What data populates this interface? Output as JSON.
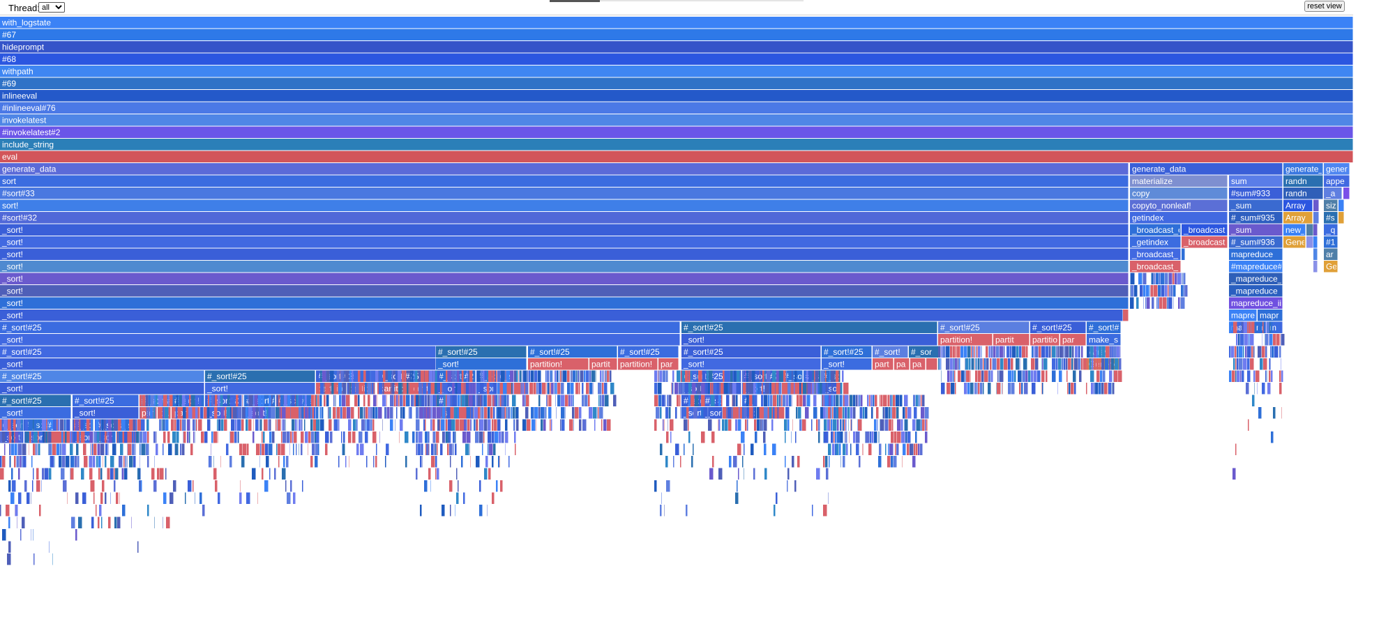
{
  "toolbar": {
    "thread_label": "Thread:",
    "thread_options": [
      "all"
    ],
    "thread_selected": "all",
    "reset_label": "reset view"
  },
  "colors": {
    "palette": [
      "#4169e1",
      "#3a5fd8",
      "#5b6fd6",
      "#6f7cf0",
      "#3b82f6",
      "#2e6fd8",
      "#1f5bbf",
      "#4f5fb8",
      "#2f88c8",
      "#2a6fb0",
      "#6a5acd",
      "#5f7fe0"
    ],
    "highlight_red": "#d9616a",
    "orange": "#e0a038",
    "lavender": "#8a91e8",
    "steel": "#4f7fa8",
    "purple": "#7b4fe8",
    "eval_red": "#d2555a"
  },
  "flame": {
    "frames": [
      [
        0,
        0,
        1940,
        "with_logstate",
        "#3b82f6"
      ],
      [
        1,
        0,
        1940,
        "#67",
        "#2e79e8"
      ],
      [
        2,
        0,
        1940,
        "hideprompt",
        "#3554c9"
      ],
      [
        3,
        0,
        1940,
        "#68",
        "#2b56e0"
      ],
      [
        4,
        0,
        1940,
        "withpath",
        "#3f86f2"
      ],
      [
        5,
        0,
        1940,
        "#69",
        "#2f72c7"
      ],
      [
        6,
        0,
        1940,
        "inlineeval",
        "#2459c9"
      ],
      [
        7,
        0,
        1940,
        "#inlineeval#76",
        "#4b79e6"
      ],
      [
        8,
        0,
        1940,
        "invokelatest",
        "#4f86e6"
      ],
      [
        9,
        0,
        1940,
        "#invokelatest#2",
        "#6a55e8"
      ],
      [
        10,
        0,
        1940,
        "include_string",
        "#2b7fb8"
      ],
      [
        11,
        0,
        1940,
        "eval",
        "#d2555a"
      ],
      [
        12,
        0,
        1618,
        "generate_data",
        "#5b6ad8"
      ],
      [
        12,
        1620,
        219,
        "generate_data",
        "#3a5fd8"
      ],
      [
        12,
        1840,
        57,
        "generate_",
        "#3b78e0"
      ],
      [
        12,
        1898,
        37,
        "gener",
        "#4f86f0"
      ],
      [
        13,
        0,
        1618,
        "sort",
        "#3b6ce0"
      ],
      [
        13,
        1620,
        140,
        "materialize",
        "#7e8fd0"
      ],
      [
        13,
        1762,
        77,
        "sum",
        "#5a7de8"
      ],
      [
        13,
        1840,
        57,
        "randn",
        "#2a6fb0"
      ],
      [
        13,
        1898,
        37,
        "appe",
        "#4169e1"
      ],
      [
        14,
        0,
        1618,
        "#sort#33",
        "#4a78e0"
      ],
      [
        14,
        1620,
        140,
        "copy",
        "#5f8bd8"
      ],
      [
        14,
        1762,
        77,
        "#sum#933",
        "#3a5fd8"
      ],
      [
        14,
        1840,
        57,
        "randn",
        "#2f5fb8"
      ],
      [
        14,
        1898,
        26,
        "_a",
        "#5f7fe0"
      ],
      [
        14,
        1926,
        9,
        "",
        "#7b4fe8"
      ],
      [
        15,
        0,
        1618,
        "sort!",
        "#3f7fe8"
      ],
      [
        15,
        1620,
        140,
        "copyto_nonleaf!",
        "#5b6fd6"
      ],
      [
        15,
        1762,
        77,
        "_sum",
        "#3a6ad0"
      ],
      [
        15,
        1840,
        42,
        "Array",
        "#2b56e0"
      ],
      [
        15,
        1883,
        8,
        "",
        "#6a5acd"
      ],
      [
        15,
        1898,
        20,
        "siz",
        "#4f7fa8"
      ],
      [
        15,
        1919,
        8,
        "",
        "#3b82f6"
      ],
      [
        16,
        0,
        1618,
        "#sort!#32",
        "#5068d8"
      ],
      [
        16,
        1620,
        140,
        "getindex",
        "#4169e1"
      ],
      [
        16,
        1762,
        77,
        "#_sum#935",
        "#2e5fc0"
      ],
      [
        16,
        1840,
        42,
        "Array",
        "#e0a038"
      ],
      [
        16,
        1883,
        8,
        "",
        "#5f7fe0"
      ],
      [
        16,
        1898,
        20,
        "#s",
        "#2a6fb0"
      ],
      [
        16,
        1919,
        8,
        "",
        "#e0a038"
      ],
      [
        17,
        0,
        1618,
        "_sort!",
        "#3a5fd8"
      ],
      [
        17,
        1620,
        73,
        "_broadcast_c",
        "#2e6fd8"
      ],
      [
        17,
        1694,
        66,
        "_broadcast",
        "#2b56e0"
      ],
      [
        17,
        1762,
        77,
        "_sum",
        "#6a5acd"
      ],
      [
        17,
        1840,
        32,
        "new_",
        "#3b82f6"
      ],
      [
        17,
        1873,
        10,
        "",
        "#4f7fa8"
      ],
      [
        17,
        1883,
        6,
        "",
        "#6a5acd"
      ],
      [
        17,
        1898,
        20,
        "_q",
        "#3b6ce0"
      ],
      [
        18,
        0,
        1618,
        "_sort!",
        "#4169e1"
      ],
      [
        18,
        1620,
        73,
        "_getindex",
        "#3b6ce0"
      ],
      [
        18,
        1694,
        66,
        "_broadcast",
        "#d9616a"
      ],
      [
        18,
        1762,
        77,
        "#_sum#936",
        "#3a6ad0"
      ],
      [
        18,
        1840,
        32,
        "Gene",
        "#e0a038"
      ],
      [
        18,
        1873,
        10,
        "",
        "#8a91e8"
      ],
      [
        18,
        1883,
        6,
        "",
        "#3b82f6"
      ],
      [
        18,
        1898,
        20,
        "#1",
        "#2e6fd8"
      ],
      [
        19,
        0,
        1618,
        "_sort!",
        "#3a5fd8"
      ],
      [
        19,
        1620,
        73,
        "_broadcast_",
        "#4169e1"
      ],
      [
        19,
        1694,
        5,
        "",
        "#2e6fd8"
      ],
      [
        19,
        1762,
        77,
        "mapreduce",
        "#2e6fd8"
      ],
      [
        19,
        1883,
        6,
        "",
        "#4f86e6"
      ],
      [
        19,
        1898,
        20,
        "ar",
        "#4f7fa8"
      ],
      [
        20,
        0,
        1618,
        "_sort!",
        "#4f8ad0"
      ],
      [
        20,
        1620,
        73,
        "_broadcast_",
        "#d9616a"
      ],
      [
        20,
        1762,
        77,
        "#mapreduce#",
        "#3b82f6"
      ],
      [
        20,
        1883,
        6,
        "",
        "#8a91e8"
      ],
      [
        20,
        1898,
        20,
        "Ge",
        "#e0a038"
      ],
      [
        21,
        0,
        1618,
        "_sort!",
        "#6a5acd"
      ],
      [
        21,
        1620,
        73,
        "",
        "#ffffff"
      ],
      [
        21,
        1762,
        77,
        "_mapreduce_",
        "#2f5fb8"
      ],
      [
        22,
        0,
        1618,
        "_sort!",
        "#4f5fb8"
      ],
      [
        22,
        1762,
        77,
        "_mapreduce",
        "#2a5fc0"
      ],
      [
        23,
        0,
        1618,
        "_sort!",
        "#2e6fd8"
      ],
      [
        23,
        1762,
        77,
        "mapreduce_ii",
        "#6f4fe0"
      ],
      [
        24,
        0,
        1610,
        "_sort!",
        "#3a5fd8"
      ],
      [
        24,
        1610,
        8,
        "",
        "#d9616a"
      ],
      [
        24,
        1762,
        40,
        "mapre",
        "#3b82f6"
      ],
      [
        24,
        1803,
        36,
        "mapr",
        "#2e6fd8"
      ],
      [
        25,
        0,
        975,
        "#_sort!#25",
        "#3b6ce0"
      ],
      [
        25,
        977,
        367,
        "#_sort!#25",
        "#2a6fb0"
      ],
      [
        25,
        1345,
        131,
        "#_sort!#25",
        "#5b7fe0"
      ],
      [
        25,
        1477,
        80,
        "#_sort!#25",
        "#3a5fd8"
      ],
      [
        25,
        1558,
        49,
        "#_sort!#",
        "#2e6fd8"
      ],
      [
        25,
        1762,
        24,
        "ma",
        "#4169e1"
      ],
      [
        25,
        1787,
        10,
        "",
        "#6a8ae8"
      ],
      [
        25,
        1798,
        18,
        "m",
        "#2e6fd8"
      ],
      [
        25,
        1817,
        22,
        "m",
        "#3b6ce0"
      ],
      [
        26,
        0,
        975,
        "_sort!",
        "#4169e1"
      ],
      [
        26,
        977,
        367,
        "_sort!",
        "#3a5fd8"
      ],
      [
        26,
        1345,
        78,
        "partition!",
        "#d9616a"
      ],
      [
        26,
        1424,
        52,
        "partit",
        "#d9616a"
      ],
      [
        26,
        1477,
        42,
        "partitio",
        "#d9616a"
      ],
      [
        26,
        1520,
        37,
        "par",
        "#d9616a"
      ],
      [
        26,
        1558,
        49,
        "make_s",
        "#3b6ce0"
      ],
      [
        27,
        0,
        625,
        "#_sort!#25",
        "#4169e1"
      ],
      [
        27,
        625,
        130,
        "#_sort!#25",
        "#2a6fb0"
      ],
      [
        27,
        757,
        128,
        "#_sort!#25",
        "#2e6fd8"
      ],
      [
        27,
        886,
        87,
        "#_sort!#25",
        "#3b6ce0"
      ],
      [
        27,
        977,
        200,
        "#_sort!#25",
        "#3a5fd8"
      ],
      [
        27,
        1178,
        72,
        "#_sort!#25",
        "#2e6fd8"
      ],
      [
        27,
        1251,
        51,
        "#_sort!",
        "#5b7fe0"
      ],
      [
        27,
        1303,
        43,
        "#_sor",
        "#2a6fb0"
      ],
      [
        27,
        1558,
        49,
        "Array",
        "#8a91e8"
      ],
      [
        28,
        0,
        625,
        "_sort!",
        "#3a5fd8"
      ],
      [
        28,
        625,
        130,
        "_sort!",
        "#2e6fd8"
      ],
      [
        28,
        757,
        87,
        "partition!",
        "#d9616a"
      ],
      [
        28,
        845,
        40,
        "partit",
        "#d9616a"
      ],
      [
        28,
        886,
        57,
        "partition!",
        "#d9616a"
      ],
      [
        28,
        944,
        29,
        "par",
        "#d9616a"
      ],
      [
        28,
        977,
        200,
        "_sort!",
        "#4169e1"
      ],
      [
        28,
        1178,
        72,
        "_sort!",
        "#3b6ce0"
      ],
      [
        28,
        1251,
        30,
        "part",
        "#d9616a"
      ],
      [
        28,
        1282,
        22,
        "pa",
        "#d9616a"
      ],
      [
        28,
        1305,
        22,
        "pa",
        "#d9616a"
      ],
      [
        28,
        1328,
        16,
        "",
        "#d9616a"
      ],
      [
        28,
        1558,
        49,
        "Generic",
        "#e0a038"
      ],
      [
        29,
        0,
        293,
        "#_sort!#25",
        "#4f86e6"
      ],
      [
        29,
        294,
        158,
        "#_sort!#25",
        "#2a6fb0"
      ],
      [
        29,
        453,
        87,
        "#_sort!#25",
        "#3b6ce0"
      ],
      [
        29,
        541,
        88,
        "#_sort!#25",
        "#4f5fb8"
      ],
      [
        29,
        626,
        56,
        "#_sort!#2",
        "#2e6fd8"
      ],
      [
        29,
        683,
        29,
        "#_so",
        "#4169e1"
      ],
      [
        29,
        713,
        24,
        "#_s",
        "#3b82f6"
      ],
      [
        29,
        977,
        86,
        "#_sort!#25",
        "#4169e1"
      ],
      [
        29,
        1064,
        56,
        "#_sort!#2",
        "#3a5fd8"
      ],
      [
        29,
        1121,
        30,
        "#_so",
        "#2e6fd8"
      ],
      [
        29,
        1152,
        24,
        "#_s",
        "#3b6ce0"
      ],
      [
        29,
        1177,
        28,
        "#_sc",
        "#2a6fb0"
      ],
      [
        29,
        1206,
        44,
        "",
        "#ffffff"
      ],
      [
        30,
        0,
        293,
        "_sort!",
        "#3a5fd8"
      ],
      [
        30,
        294,
        158,
        "_sort!",
        "#4169e1"
      ],
      [
        30,
        453,
        44,
        "partitio",
        "#d9616a"
      ],
      [
        30,
        498,
        40,
        "partiti",
        "#d9616a"
      ],
      [
        30,
        541,
        43,
        "partitic",
        "#d9616a"
      ],
      [
        30,
        585,
        42,
        "partit",
        "#d9616a"
      ],
      [
        30,
        626,
        56,
        "_sort!",
        "#3a5fd8"
      ],
      [
        30,
        683,
        29,
        "_sort",
        "#4169e1"
      ],
      [
        30,
        713,
        24,
        "",
        "#d9616a"
      ],
      [
        30,
        738,
        16,
        "",
        "#d9616a"
      ],
      [
        30,
        977,
        86,
        "_sort!",
        "#3a5fd8"
      ],
      [
        30,
        1064,
        56,
        "_sort!",
        "#4169e1"
      ],
      [
        30,
        1121,
        50,
        "",
        "#d9616a"
      ],
      [
        30,
        1172,
        6,
        "",
        "#2e6fd8"
      ],
      [
        30,
        1178,
        30,
        "_sor",
        "#3a5fd8"
      ],
      [
        30,
        1209,
        8,
        "",
        "#d9616a"
      ],
      [
        31,
        0,
        102,
        "#_sort!#25",
        "#2a6fb0"
      ],
      [
        31,
        104,
        95,
        "#_sort!#25",
        "#3b6ce0"
      ],
      [
        31,
        200,
        46,
        "#_sort!#",
        "#4f86e6"
      ],
      [
        31,
        247,
        46,
        "#_sort!",
        "#2e6fd8"
      ],
      [
        31,
        294,
        52,
        "#_sort!#2",
        "#3a5fd8"
      ],
      [
        31,
        350,
        45,
        "#_sort!#",
        "#2e6fd8"
      ],
      [
        31,
        396,
        30,
        "#_sc",
        "#4f5fb8"
      ],
      [
        31,
        427,
        24,
        "#_s",
        "#3b82f6"
      ],
      [
        31,
        626,
        18,
        "#_s",
        "#4169e1"
      ],
      [
        31,
        977,
        30,
        "#_so",
        "#3a5fd8"
      ],
      [
        31,
        1008,
        28,
        "#_sc",
        "#4169e1"
      ],
      [
        31,
        1064,
        20,
        "#_",
        "#3b6ce0"
      ],
      [
        31,
        1178,
        14,
        "",
        "#2e6fd8"
      ],
      [
        32,
        0,
        102,
        "_sort!",
        "#3b6ce0"
      ],
      [
        32,
        104,
        95,
        "_sort!",
        "#3a5fd8"
      ],
      [
        32,
        200,
        25,
        "par",
        "#d9616a"
      ],
      [
        32,
        226,
        18,
        "pa",
        "#d9616a"
      ],
      [
        32,
        247,
        40,
        "par",
        "#d9616a"
      ],
      [
        32,
        294,
        52,
        "_sort!",
        "#4169e1"
      ],
      [
        32,
        350,
        45,
        "_sort!",
        "#3a5fd8"
      ],
      [
        32,
        396,
        56,
        "",
        "#d9616a"
      ],
      [
        32,
        626,
        18,
        "_sc",
        "#3b6ce0"
      ],
      [
        32,
        644,
        36,
        "",
        "#d9616a"
      ],
      [
        32,
        977,
        30,
        "_sort",
        "#4169e1"
      ],
      [
        32,
        1008,
        28,
        "_sor",
        "#3a5fd8"
      ],
      [
        32,
        1036,
        30,
        "",
        "#d9616a"
      ],
      [
        32,
        1064,
        20,
        "_sort!",
        "#3b6ce0"
      ],
      [
        32,
        1085,
        40,
        "",
        "#d9616a"
      ],
      [
        33,
        0,
        34,
        "#_sor",
        "#4169e1"
      ],
      [
        33,
        35,
        28,
        "#_sc",
        "#2e6fd8"
      ],
      [
        33,
        64,
        20,
        "#_",
        "#3b82f6"
      ],
      [
        33,
        104,
        30,
        "#_sc",
        "#3a5fd8"
      ],
      [
        33,
        136,
        30,
        "#_sc",
        "#4169e1"
      ],
      [
        33,
        167,
        30,
        "#_s",
        "#3b6ce0"
      ],
      [
        34,
        0,
        34,
        "_sort",
        "#3a5fd8"
      ],
      [
        34,
        35,
        28,
        "_sor",
        "#4169e1"
      ],
      [
        34,
        64,
        40,
        "",
        "#d9616a"
      ],
      [
        34,
        104,
        30,
        "_sort",
        "#3b6ce0"
      ],
      [
        34,
        136,
        30,
        "_sor",
        "#3a5fd8"
      ],
      [
        34,
        167,
        30,
        "",
        "#d9616a"
      ]
    ]
  }
}
